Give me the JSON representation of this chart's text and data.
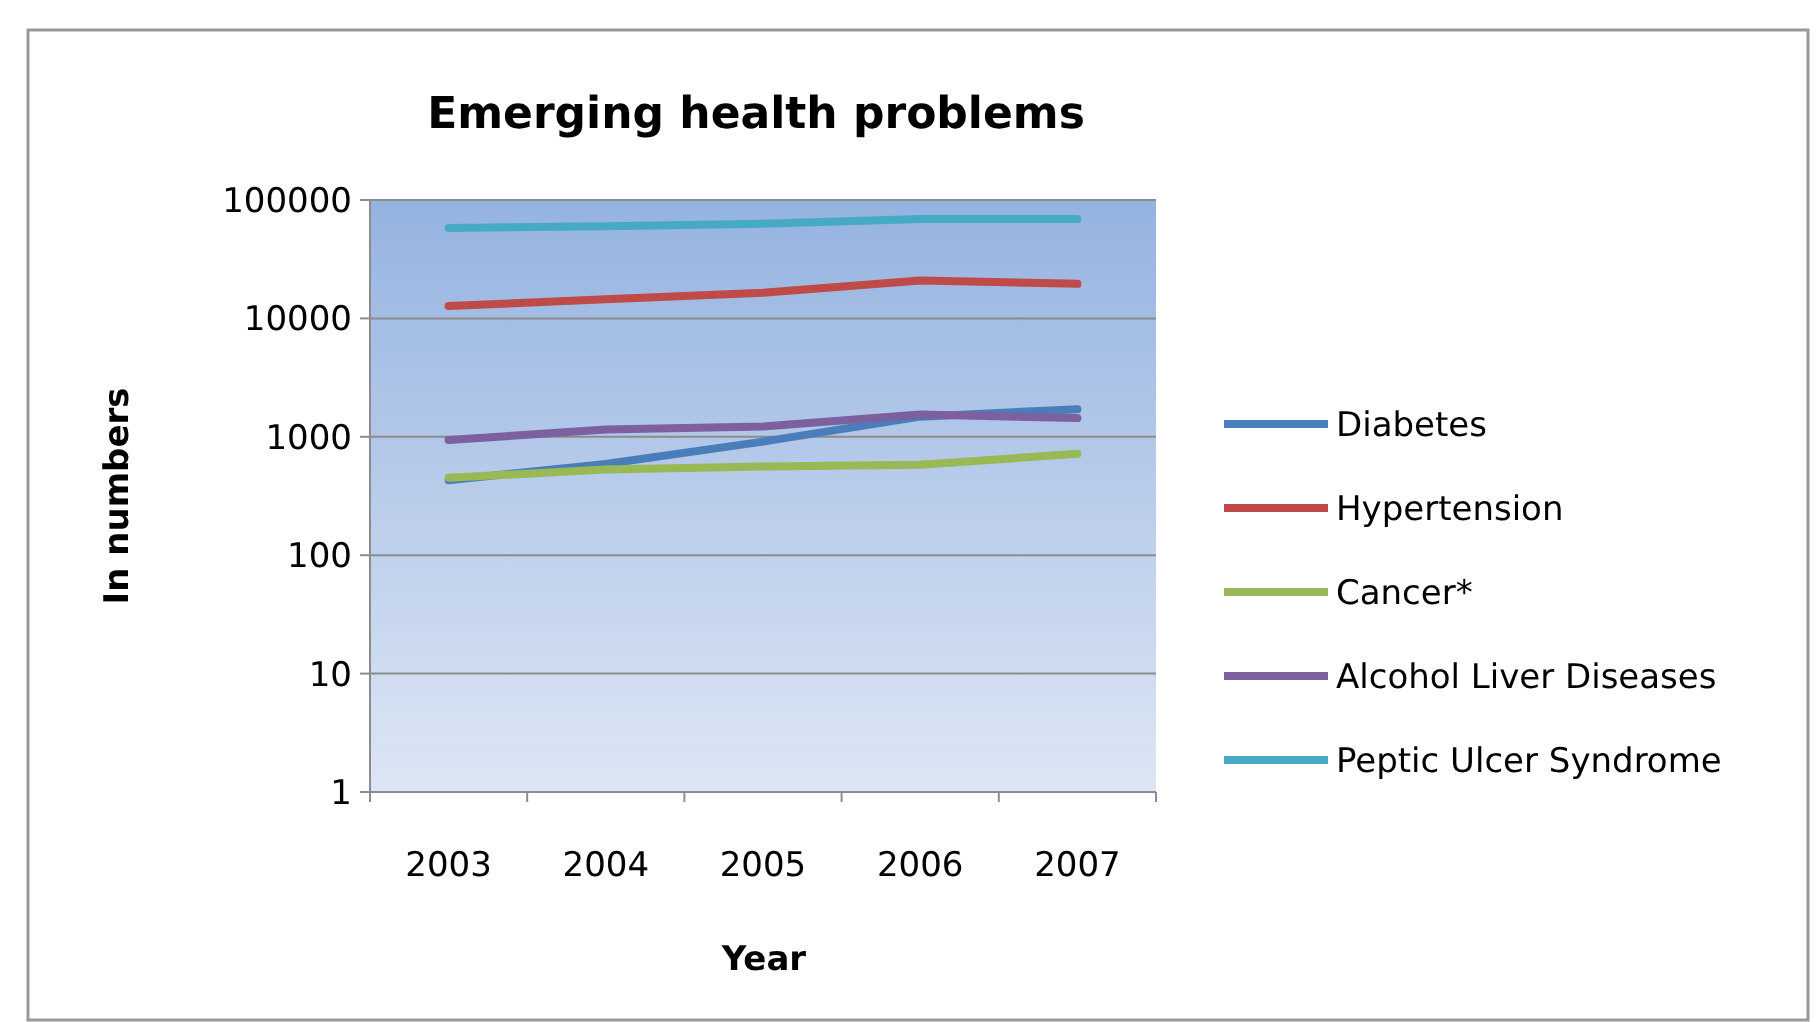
{
  "chart_data": {
    "type": "line",
    "title": "Emerging health problems",
    "xlabel": "Year",
    "ylabel": "In numbers",
    "categories": [
      "2003",
      "2004",
      "2005",
      "2006",
      "2007"
    ],
    "series": [
      {
        "name": "Diabetes",
        "color": "#4a7ebb",
        "values": [
          430,
          590,
          910,
          1480,
          1710
        ]
      },
      {
        "name": "Hypertension",
        "color": "#be4b48",
        "values": [
          12700,
          14500,
          16500,
          20900,
          19600
        ]
      },
      {
        "name": "Cancer*",
        "color": "#98b954",
        "values": [
          450,
          530,
          560,
          580,
          720
        ]
      },
      {
        "name": "Alcohol Liver Diseases",
        "color": "#7d60a0",
        "values": [
          940,
          1150,
          1220,
          1540,
          1440
        ]
      },
      {
        "name": "Peptic Ulcer Syndrome",
        "color": "#46aac5",
        "values": [
          58000,
          60000,
          63000,
          69000,
          69000
        ]
      }
    ],
    "log": true,
    "ylim": [
      1,
      100000
    ],
    "yticks": [
      1,
      10,
      100,
      1000,
      10000,
      100000
    ],
    "grid": "y",
    "legend": "right",
    "marker": "none",
    "line_style": "solid"
  }
}
